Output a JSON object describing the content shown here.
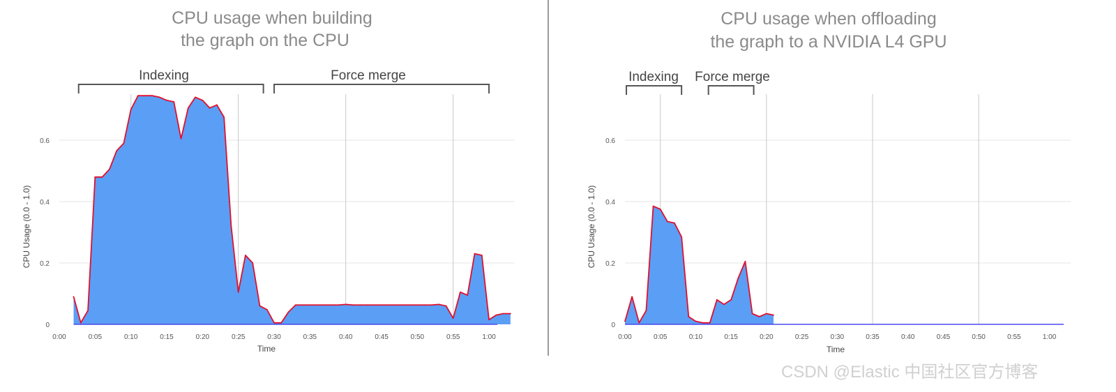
{
  "watermark": "CSDN @Elastic 中国社区官方博客",
  "colors": {
    "fill": "#5b9ef5",
    "outline": "#e0102c",
    "baseline": "#4a4af0",
    "grid": "#e6e6e6",
    "vline": "#c8c8c8"
  },
  "chart_data": [
    {
      "type": "area",
      "title_lines": [
        "CPU usage when building",
        "the graph on the CPU"
      ],
      "xlabel": "Time",
      "ylabel": "CPU Usage (0.0 - 1.0)",
      "xlim": [
        0,
        63.5
      ],
      "ylim": [
        0,
        0.75
      ],
      "xticks": [
        0,
        5,
        10,
        15,
        20,
        25,
        30,
        35,
        40,
        45,
        50,
        55,
        60
      ],
      "xtick_labels": [
        "0:00",
        "0:05",
        "0:10",
        "0:15",
        "0:20",
        "0:25",
        "0:30",
        "0:35",
        "0:40",
        "0:45",
        "0:50",
        "0:55",
        "1:00"
      ],
      "yticks": [
        0,
        0.2,
        0.4,
        0.6
      ],
      "ytick_labels": [
        "0",
        "0.2",
        "0.4",
        "0.6"
      ],
      "vlines": [
        10,
        25,
        40,
        55
      ],
      "phases": [
        {
          "label": "Indexing",
          "start": 2.7,
          "end": 28.5
        },
        {
          "label": "Force merge",
          "start": 30,
          "end": 60
        }
      ],
      "series": [
        {
          "x": [
            2,
            3,
            4,
            5,
            6,
            7,
            8,
            9,
            10,
            11,
            12,
            13,
            14,
            15,
            16,
            17,
            18,
            19,
            20,
            21,
            22,
            23,
            24,
            25,
            26,
            27,
            28,
            29,
            30,
            31,
            32,
            33,
            34,
            35,
            36,
            37,
            38,
            39,
            40,
            41,
            42,
            43,
            44,
            45,
            46,
            47,
            48,
            49,
            50,
            51,
            52,
            53,
            54,
            55,
            56,
            57,
            58,
            59,
            60,
            61,
            62,
            63
          ],
          "y": [
            0.09,
            0.005,
            0.045,
            0.48,
            0.48,
            0.505,
            0.565,
            0.59,
            0.7,
            0.745,
            0.745,
            0.745,
            0.74,
            0.73,
            0.725,
            0.605,
            0.705,
            0.74,
            0.73,
            0.705,
            0.715,
            0.675,
            0.32,
            0.105,
            0.225,
            0.2,
            0.06,
            0.048,
            0.005,
            0.005,
            0.04,
            0.063,
            0.063,
            0.063,
            0.063,
            0.063,
            0.063,
            0.063,
            0.065,
            0.063,
            0.063,
            0.063,
            0.063,
            0.063,
            0.063,
            0.063,
            0.063,
            0.063,
            0.063,
            0.063,
            0.063,
            0.065,
            0.06,
            0.02,
            0.105,
            0.095,
            0.23,
            0.225,
            0.015,
            0.03,
            0.035,
            0.035
          ]
        }
      ]
    },
    {
      "type": "area",
      "title_lines": [
        "CPU usage when offloading",
        "the graph to a NVIDIA L4 GPU"
      ],
      "xlabel": "Time",
      "ylabel": "CPU Usage (0.0 - 1.0)",
      "xlim": [
        0,
        63
      ],
      "ylim": [
        0,
        0.75
      ],
      "xticks": [
        0,
        5,
        10,
        15,
        20,
        25,
        30,
        35,
        40,
        45,
        50,
        55,
        60
      ],
      "xtick_labels": [
        "0:00",
        "0:05",
        "0:10",
        "0:15",
        "0:20",
        "0:25",
        "0:30",
        "0:35",
        "0:40",
        "0:45",
        "0:50",
        "0:55",
        "1:00"
      ],
      "yticks": [
        0,
        0.2,
        0.4,
        0.6
      ],
      "ytick_labels": [
        "0",
        "0.2",
        "0.4",
        "0.6"
      ],
      "vlines": [
        5,
        20,
        35,
        50
      ],
      "phases": [
        {
          "label": "Indexing",
          "start": 0.2,
          "end": 8
        },
        {
          "label": "Force merge",
          "start": 11.8,
          "end": 18.2
        }
      ],
      "series": [
        {
          "x": [
            0,
            1,
            2,
            3,
            4,
            5,
            6,
            7,
            8,
            9,
            10,
            11,
            12,
            13,
            14,
            15,
            16,
            17,
            18,
            19,
            20,
            21
          ],
          "y": [
            0.01,
            0.09,
            0.005,
            0.045,
            0.385,
            0.375,
            0.335,
            0.33,
            0.285,
            0.025,
            0.01,
            0.005,
            0.005,
            0.08,
            0.065,
            0.08,
            0.15,
            0.205,
            0.035,
            0.025,
            0.035,
            0.03
          ]
        }
      ]
    }
  ]
}
